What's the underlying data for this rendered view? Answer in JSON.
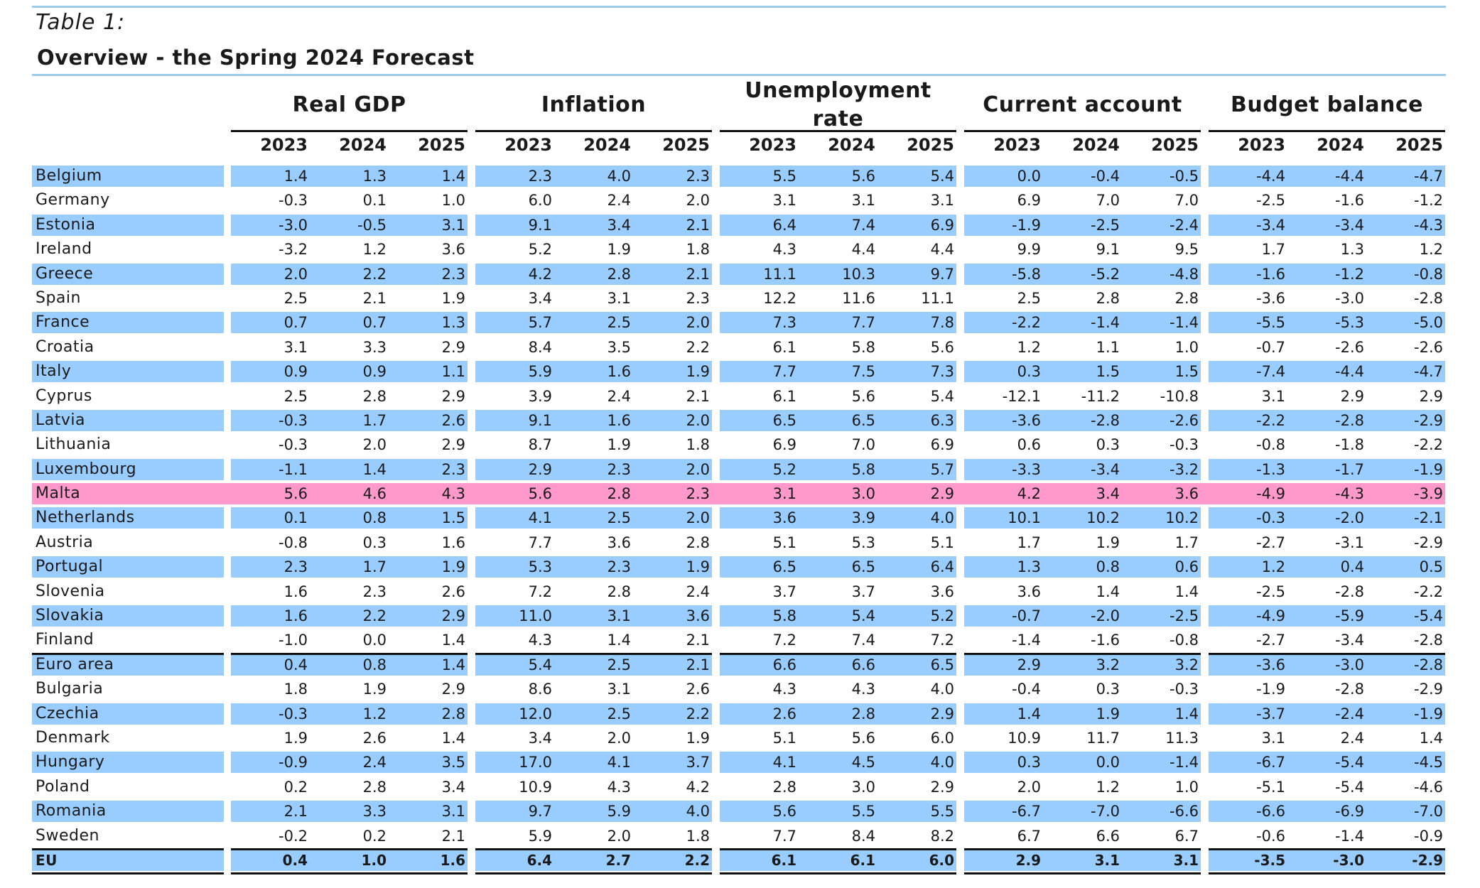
{
  "table": {
    "caption": "Table 1:",
    "title": "Overview - the Spring 2024 Forecast",
    "groups": [
      "Real GDP",
      "Inflation",
      "Unemployment rate",
      "Current account",
      "Budget balance"
    ],
    "years": [
      "2023",
      "2024",
      "2025"
    ],
    "rows": [
      {
        "country": "Belgium",
        "values": [
          "1.4",
          "1.3",
          "1.4",
          "2.3",
          "4.0",
          "2.3",
          "5.5",
          "5.6",
          "5.4",
          "0.0",
          "-0.4",
          "-0.5",
          "-4.4",
          "-4.4",
          "-4.7"
        ],
        "shade": "blue"
      },
      {
        "country": "Germany",
        "values": [
          "-0.3",
          "0.1",
          "1.0",
          "6.0",
          "2.4",
          "2.0",
          "3.1",
          "3.1",
          "3.1",
          "6.9",
          "7.0",
          "7.0",
          "-2.5",
          "-1.6",
          "-1.2"
        ],
        "shade": "none"
      },
      {
        "country": "Estonia",
        "values": [
          "-3.0",
          "-0.5",
          "3.1",
          "9.1",
          "3.4",
          "2.1",
          "6.4",
          "7.4",
          "6.9",
          "-1.9",
          "-2.5",
          "-2.4",
          "-3.4",
          "-3.4",
          "-4.3"
        ],
        "shade": "blue"
      },
      {
        "country": "Ireland",
        "values": [
          "-3.2",
          "1.2",
          "3.6",
          "5.2",
          "1.9",
          "1.8",
          "4.3",
          "4.4",
          "4.4",
          "9.9",
          "9.1",
          "9.5",
          "1.7",
          "1.3",
          "1.2"
        ],
        "shade": "none"
      },
      {
        "country": "Greece",
        "values": [
          "2.0",
          "2.2",
          "2.3",
          "4.2",
          "2.8",
          "2.1",
          "11.1",
          "10.3",
          "9.7",
          "-5.8",
          "-5.2",
          "-4.8",
          "-1.6",
          "-1.2",
          "-0.8"
        ],
        "shade": "blue"
      },
      {
        "country": "Spain",
        "values": [
          "2.5",
          "2.1",
          "1.9",
          "3.4",
          "3.1",
          "2.3",
          "12.2",
          "11.6",
          "11.1",
          "2.5",
          "2.8",
          "2.8",
          "-3.6",
          "-3.0",
          "-2.8"
        ],
        "shade": "none"
      },
      {
        "country": "France",
        "values": [
          "0.7",
          "0.7",
          "1.3",
          "5.7",
          "2.5",
          "2.0",
          "7.3",
          "7.7",
          "7.8",
          "-2.2",
          "-1.4",
          "-1.4",
          "-5.5",
          "-5.3",
          "-5.0"
        ],
        "shade": "blue"
      },
      {
        "country": "Croatia",
        "values": [
          "3.1",
          "3.3",
          "2.9",
          "8.4",
          "3.5",
          "2.2",
          "6.1",
          "5.8",
          "5.6",
          "1.2",
          "1.1",
          "1.0",
          "-0.7",
          "-2.6",
          "-2.6"
        ],
        "shade": "none"
      },
      {
        "country": "Italy",
        "values": [
          "0.9",
          "0.9",
          "1.1",
          "5.9",
          "1.6",
          "1.9",
          "7.7",
          "7.5",
          "7.3",
          "0.3",
          "1.5",
          "1.5",
          "-7.4",
          "-4.4",
          "-4.7"
        ],
        "shade": "blue"
      },
      {
        "country": "Cyprus",
        "values": [
          "2.5",
          "2.8",
          "2.9",
          "3.9",
          "2.4",
          "2.1",
          "6.1",
          "5.6",
          "5.4",
          "-12.1",
          "-11.2",
          "-10.8",
          "3.1",
          "2.9",
          "2.9"
        ],
        "shade": "none"
      },
      {
        "country": "Latvia",
        "values": [
          "-0.3",
          "1.7",
          "2.6",
          "9.1",
          "1.6",
          "2.0",
          "6.5",
          "6.5",
          "6.3",
          "-3.6",
          "-2.8",
          "-2.6",
          "-2.2",
          "-2.8",
          "-2.9"
        ],
        "shade": "blue"
      },
      {
        "country": "Lithuania",
        "values": [
          "-0.3",
          "2.0",
          "2.9",
          "8.7",
          "1.9",
          "1.8",
          "6.9",
          "7.0",
          "6.9",
          "0.6",
          "0.3",
          "-0.3",
          "-0.8",
          "-1.8",
          "-2.2"
        ],
        "shade": "none"
      },
      {
        "country": "Luxembourg",
        "values": [
          "-1.1",
          "1.4",
          "2.3",
          "2.9",
          "2.3",
          "2.0",
          "5.2",
          "5.8",
          "5.7",
          "-3.3",
          "-3.4",
          "-3.2",
          "-1.3",
          "-1.7",
          "-1.9"
        ],
        "shade": "blue"
      },
      {
        "country": "Malta",
        "values": [
          "5.6",
          "4.6",
          "4.3",
          "5.6",
          "2.8",
          "2.3",
          "3.1",
          "3.0",
          "2.9",
          "4.2",
          "3.4",
          "3.6",
          "-4.9",
          "-4.3",
          "-3.9"
        ],
        "shade": "pink"
      },
      {
        "country": "Netherlands",
        "values": [
          "0.1",
          "0.8",
          "1.5",
          "4.1",
          "2.5",
          "2.0",
          "3.6",
          "3.9",
          "4.0",
          "10.1",
          "10.2",
          "10.2",
          "-0.3",
          "-2.0",
          "-2.1"
        ],
        "shade": "blue"
      },
      {
        "country": "Austria",
        "values": [
          "-0.8",
          "0.3",
          "1.6",
          "7.7",
          "3.6",
          "2.8",
          "5.1",
          "5.3",
          "5.1",
          "1.7",
          "1.9",
          "1.7",
          "-2.7",
          "-3.1",
          "-2.9"
        ],
        "shade": "none"
      },
      {
        "country": "Portugal",
        "values": [
          "2.3",
          "1.7",
          "1.9",
          "5.3",
          "2.3",
          "1.9",
          "6.5",
          "6.5",
          "6.4",
          "1.3",
          "0.8",
          "0.6",
          "1.2",
          "0.4",
          "0.5"
        ],
        "shade": "blue"
      },
      {
        "country": "Slovenia",
        "values": [
          "1.6",
          "2.3",
          "2.6",
          "7.2",
          "2.8",
          "2.4",
          "3.7",
          "3.7",
          "3.6",
          "3.6",
          "1.4",
          "1.4",
          "-2.5",
          "-2.8",
          "-2.2"
        ],
        "shade": "none"
      },
      {
        "country": "Slovakia",
        "values": [
          "1.6",
          "2.2",
          "2.9",
          "11.0",
          "3.1",
          "3.6",
          "5.8",
          "5.4",
          "5.2",
          "-0.7",
          "-2.0",
          "-2.5",
          "-4.9",
          "-5.9",
          "-5.4"
        ],
        "shade": "blue"
      },
      {
        "country": "Finland",
        "values": [
          "-1.0",
          "0.0",
          "1.4",
          "4.3",
          "1.4",
          "2.1",
          "7.2",
          "7.4",
          "7.2",
          "-1.4",
          "-1.6",
          "-0.8",
          "-2.7",
          "-3.4",
          "-2.8"
        ],
        "shade": "none"
      },
      {
        "country": "Euro area",
        "values": [
          "0.4",
          "0.8",
          "1.4",
          "5.4",
          "2.5",
          "2.1",
          "6.6",
          "6.6",
          "6.5",
          "2.9",
          "3.2",
          "3.2",
          "-3.6",
          "-3.0",
          "-2.8"
        ],
        "shade": "blue"
      },
      {
        "country": "Bulgaria",
        "values": [
          "1.8",
          "1.9",
          "2.9",
          "8.6",
          "3.1",
          "2.6",
          "4.3",
          "4.3",
          "4.0",
          "-0.4",
          "0.3",
          "-0.3",
          "-1.9",
          "-2.8",
          "-2.9"
        ],
        "shade": "none"
      },
      {
        "country": "Czechia",
        "values": [
          "-0.3",
          "1.2",
          "2.8",
          "12.0",
          "2.5",
          "2.2",
          "2.6",
          "2.8",
          "2.9",
          "1.4",
          "1.9",
          "1.4",
          "-3.7",
          "-2.4",
          "-1.9"
        ],
        "shade": "blue"
      },
      {
        "country": "Denmark",
        "values": [
          "1.9",
          "2.6",
          "1.4",
          "3.4",
          "2.0",
          "1.9",
          "5.1",
          "5.6",
          "6.0",
          "10.9",
          "11.7",
          "11.3",
          "3.1",
          "2.4",
          "1.4"
        ],
        "shade": "none"
      },
      {
        "country": "Hungary",
        "values": [
          "-0.9",
          "2.4",
          "3.5",
          "17.0",
          "4.1",
          "3.7",
          "4.1",
          "4.5",
          "4.0",
          "0.3",
          "0.0",
          "-1.4",
          "-6.7",
          "-5.4",
          "-4.5"
        ],
        "shade": "blue"
      },
      {
        "country": "Poland",
        "values": [
          "0.2",
          "2.8",
          "3.4",
          "10.9",
          "4.3",
          "4.2",
          "2.8",
          "3.0",
          "2.9",
          "2.0",
          "1.2",
          "1.0",
          "-5.1",
          "-5.4",
          "-4.6"
        ],
        "shade": "none"
      },
      {
        "country": "Romania",
        "values": [
          "2.1",
          "3.3",
          "3.1",
          "9.7",
          "5.9",
          "4.0",
          "5.6",
          "5.5",
          "5.5",
          "-6.7",
          "-7.0",
          "-6.6",
          "-6.6",
          "-6.9",
          "-7.0"
        ],
        "shade": "blue"
      },
      {
        "country": "Sweden",
        "values": [
          "-0.2",
          "0.2",
          "2.1",
          "5.9",
          "2.0",
          "1.8",
          "7.7",
          "8.4",
          "8.2",
          "6.7",
          "6.6",
          "6.7",
          "-0.6",
          "-1.4",
          "-0.9"
        ],
        "shade": "none"
      },
      {
        "country": "EU",
        "values": [
          "0.4",
          "1.0",
          "1.6",
          "6.4",
          "2.7",
          "2.2",
          "6.1",
          "6.1",
          "6.0",
          "2.9",
          "3.1",
          "3.1",
          "-3.5",
          "-3.0",
          "-2.9"
        ],
        "shade": "blue"
      }
    ]
  }
}
